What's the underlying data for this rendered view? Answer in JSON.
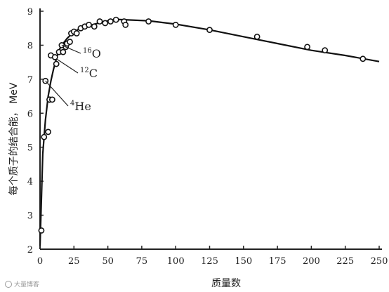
{
  "chart_data": {
    "type": "scatter",
    "xlabel": "质量数",
    "ylabel": "每个质子的结合能， MeV",
    "xlim": [
      0,
      250
    ],
    "ylim": [
      2,
      9
    ],
    "xticks": [
      0,
      25,
      50,
      75,
      100,
      125,
      150,
      175,
      200,
      225,
      250
    ],
    "yticks": [
      2,
      3,
      4,
      5,
      6,
      7,
      8,
      9
    ],
    "grid": false,
    "points": {
      "x": [
        1,
        3,
        4,
        6,
        7,
        7,
        8,
        9,
        11,
        12,
        14,
        16,
        17,
        19,
        20,
        22,
        23,
        25,
        27,
        30,
        33,
        36,
        40,
        44,
        48,
        52,
        56,
        62,
        63,
        80,
        100,
        125,
        160,
        197,
        210,
        238
      ],
      "y": [
        2.55,
        5.3,
        6.95,
        5.45,
        6.4,
        6.4,
        7.7,
        6.4,
        7.65,
        7.45,
        7.8,
        8.0,
        7.8,
        7.95,
        8.05,
        8.1,
        8.35,
        8.4,
        8.35,
        8.5,
        8.55,
        8.6,
        8.55,
        8.7,
        8.65,
        8.7,
        8.75,
        8.7,
        8.6,
        8.7,
        8.6,
        8.45,
        8.25,
        7.95,
        7.85,
        7.6
      ]
    },
    "curve": {
      "x": [
        0,
        2,
        4,
        6,
        8,
        10,
        12,
        14,
        16,
        18,
        20,
        25,
        30,
        40,
        50,
        56,
        62,
        80,
        100,
        125,
        150,
        175,
        200,
        225,
        250
      ],
      "y": [
        2.1,
        4.8,
        5.8,
        6.5,
        6.95,
        7.3,
        7.6,
        7.85,
        8.0,
        8.1,
        8.2,
        8.4,
        8.5,
        8.62,
        8.72,
        8.76,
        8.75,
        8.72,
        8.62,
        8.45,
        8.25,
        8.05,
        7.85,
        7.7,
        7.52
      ]
    },
    "annotations": [
      {
        "mass": "16",
        "symbol": "O",
        "x": 16,
        "y": 8.0
      },
      {
        "mass": "12",
        "symbol": "C",
        "x": 12,
        "y": 7.6
      },
      {
        "mass": "4",
        "symbol": "He",
        "x": 4,
        "y": 6.95
      }
    ]
  },
  "watermark": "大量博客"
}
